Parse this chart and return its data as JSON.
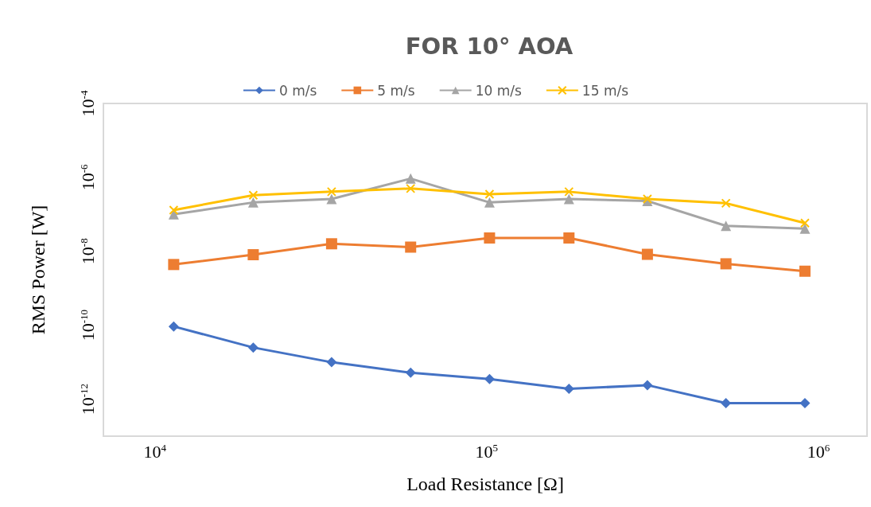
{
  "chart_data": {
    "type": "line",
    "title": "FOR 10° AOA",
    "xlabel": "Load Resistance [Ω]",
    "ylabel": "RMS Power [W]",
    "x": [
      11400,
      19800,
      34100,
      59000,
      102000,
      177000,
      305000,
      526000,
      910000
    ],
    "series": [
      {
        "name": "0 m/s",
        "color": "#4472c4",
        "marker": "diamond",
        "values": [
          9.3e-11,
          2.5e-11,
          1e-11,
          5.2e-12,
          3.5e-12,
          1.9e-12,
          2.4e-12,
          7.8e-13,
          7.8e-13
        ]
      },
      {
        "name": "5 m/s",
        "color": "#ed7d31",
        "marker": "square",
        "values": [
          4.4e-09,
          8.1e-09,
          1.6e-08,
          1.3e-08,
          2.3e-08,
          2.3e-08,
          8.3e-09,
          4.6e-09,
          2.9e-09
        ]
      },
      {
        "name": "10 m/s",
        "color": "#a5a5a5",
        "marker": "triangle",
        "values": [
          1e-07,
          2.1e-07,
          2.6e-07,
          9.3e-07,
          2.1e-07,
          2.6e-07,
          2.3e-07,
          4.9e-08,
          4.1e-08
        ]
      },
      {
        "name": "15 m/s",
        "color": "#ffc000",
        "marker": "cross",
        "values": [
          1.3e-07,
          3.3e-07,
          4.1e-07,
          5e-07,
          3.5e-07,
          4.1e-07,
          2.6e-07,
          2e-07,
          5.8e-08
        ]
      }
    ],
    "log": "xy",
    "xlim": [
      7000,
      1400000
    ],
    "xticks": [
      {
        "value": 10000,
        "label": "10$^{4}$"
      },
      {
        "value": 100000,
        "label": "10$^{5}$"
      },
      {
        "value": 1000000,
        "label": "10$^{6}$"
      }
    ],
    "ylim": [
      1e-13,
      0.0001
    ],
    "yticks": [
      {
        "value": 1e-12,
        "label": "10$^{-12}$"
      },
      {
        "value": 1e-10,
        "label": "10$^{-10}$"
      },
      {
        "value": 1e-08,
        "label": "10$^{-8}$"
      },
      {
        "value": 1e-06,
        "label": "10$^{-6}$"
      },
      {
        "value": 0.0001,
        "label": "10$^{-4}$"
      }
    ],
    "grid": false,
    "legend": "top",
    "line_style": "solid"
  }
}
